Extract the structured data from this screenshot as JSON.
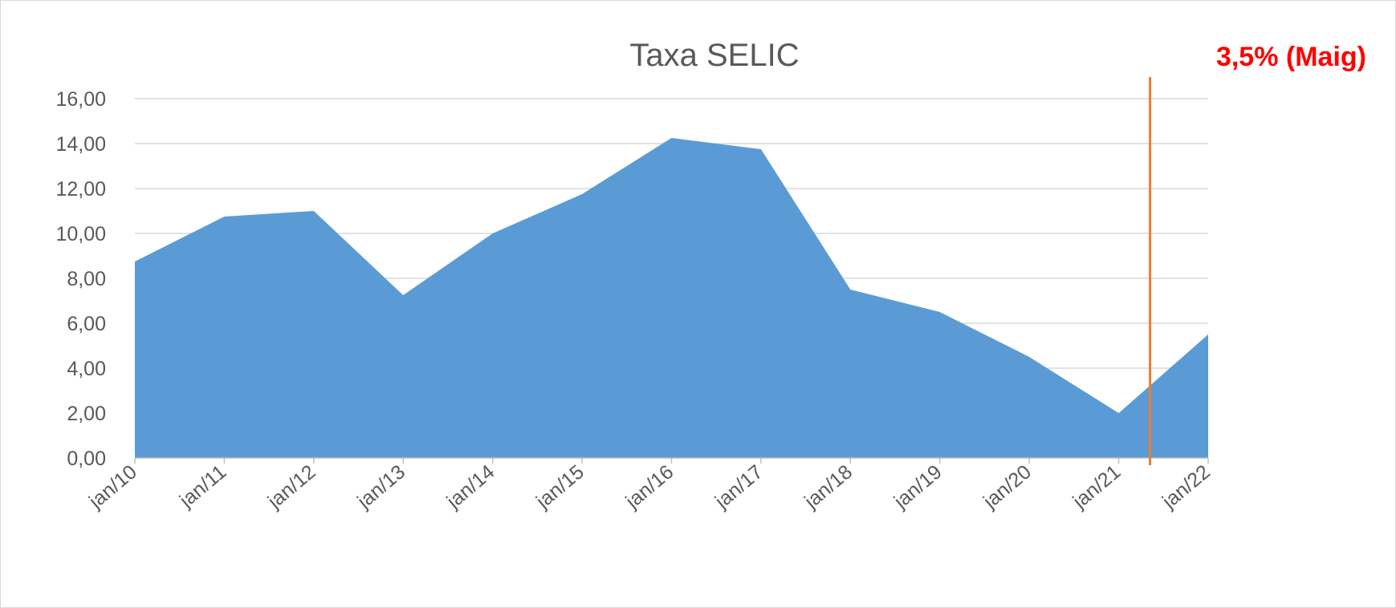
{
  "chart_data": {
    "type": "area",
    "title": "Taxa SELIC",
    "xlabel": "",
    "ylabel": "",
    "categories": [
      "jan/10",
      "jan/11",
      "jan/12",
      "jan/13",
      "jan/14",
      "jan/15",
      "jan/16",
      "jan/17",
      "jan/18",
      "jan/19",
      "jan/20",
      "jan/21",
      "jan/22"
    ],
    "series": [
      {
        "values": [
          8.75,
          10.75,
          11.0,
          7.25,
          10.0,
          11.75,
          14.25,
          13.75,
          7.5,
          6.5,
          4.5,
          2.0,
          5.5
        ]
      }
    ],
    "ylim": [
      0,
      16
    ],
    "yticks": [
      "0,00",
      "2,00",
      "4,00",
      "6,00",
      "8,00",
      "10,00",
      "12,00",
      "14,00",
      "16,00"
    ],
    "grid": true,
    "legend": "none",
    "colors": {
      "area": "#5b9bd5",
      "gridline": "#d9d9d9",
      "axis": "#bfbfbf",
      "annotation": "#ed7d31",
      "annotation_text": "#ff0000",
      "title": "#595959"
    },
    "annotation": {
      "label": "3,5% (Maig)",
      "x_category_position": 11.35
    }
  }
}
